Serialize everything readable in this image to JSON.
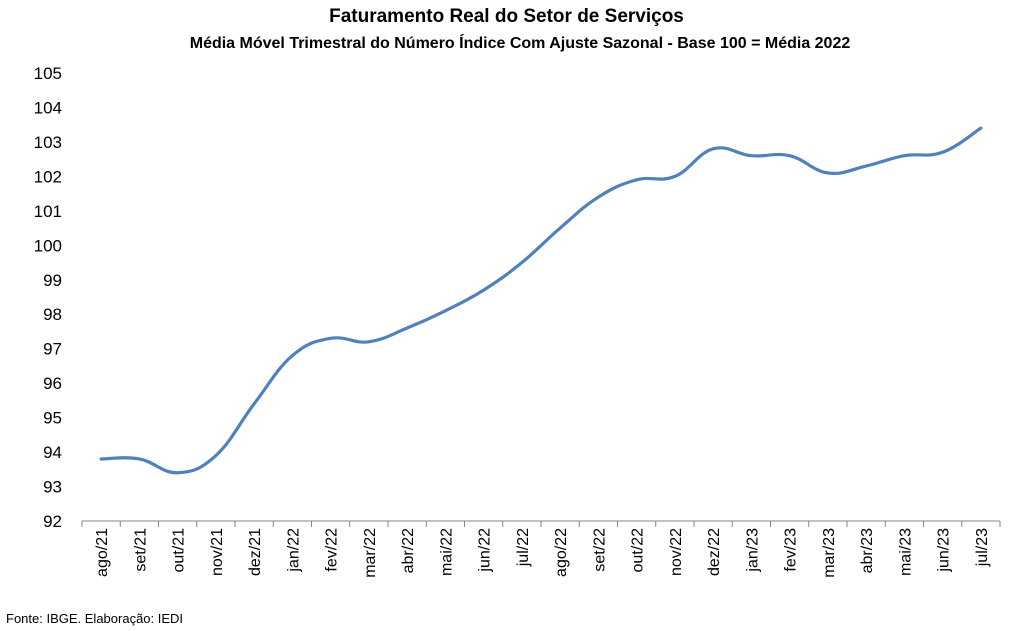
{
  "chart_data": {
    "type": "line",
    "title": "Faturamento Real do Setor de Serviços",
    "subtitle": "Média Móvel Trimestral  do Número Índice Com Ajuste Sazonal - Base 100 = Média 2022",
    "categories": [
      "ago/21",
      "set/21",
      "out/21",
      "nov/21",
      "dez/21",
      "jan/22",
      "fev/22",
      "mar/22",
      "abr/22",
      "mai/22",
      "jun/22",
      "jul/22",
      "ago/22",
      "set/22",
      "out/22",
      "nov/22",
      "dez/22",
      "jan/23",
      "fev/23",
      "mar/23",
      "abr/23",
      "mai/23",
      "jun/23",
      "jul/23"
    ],
    "series": [
      {
        "values": [
          93.8,
          93.8,
          93.4,
          93.9,
          95.4,
          96.8,
          97.3,
          97.2,
          97.6,
          98.1,
          98.7,
          99.5,
          100.5,
          101.4,
          101.9,
          102.0,
          102.8,
          102.6,
          102.6,
          102.1,
          102.3,
          102.6,
          102.7,
          103.4
        ],
        "color": "#4f81bd"
      }
    ],
    "ylim": [
      92,
      105
    ],
    "yticks": [
      92,
      93,
      94,
      95,
      96,
      97,
      98,
      99,
      100,
      101,
      102,
      103,
      104,
      105
    ],
    "grid": false,
    "legend": "none"
  },
  "footer": {
    "source": "Fonte: IBGE. Elaboração: IEDI"
  }
}
